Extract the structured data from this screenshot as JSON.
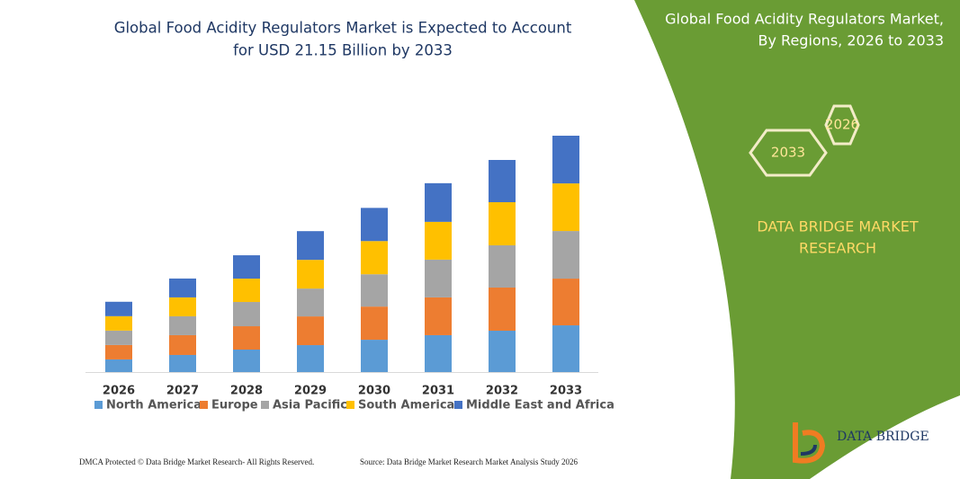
{
  "chart_data": {
    "type": "stacked-bar",
    "title": [
      "Global Food Acidity Regulators Market is Expected to Account",
      "for USD 21.15 Billion by 2033"
    ],
    "categories": [
      "2026",
      "2027",
      "2028",
      "2029",
      "2030",
      "2031",
      "2032",
      "2033"
    ],
    "series": [
      {
        "name": "North America",
        "color": "#5b9bd5",
        "values": [
          1.13,
          1.53,
          2.01,
          2.41,
          2.89,
          3.3,
          3.7,
          4.18
        ]
      },
      {
        "name": "Europe",
        "color": "#ed7d31",
        "values": [
          1.29,
          1.77,
          2.09,
          2.57,
          2.97,
          3.38,
          3.86,
          4.18
        ]
      },
      {
        "name": "Asia Pacific",
        "color": "#a5a5a5",
        "values": [
          1.29,
          1.69,
          2.17,
          2.49,
          2.89,
          3.38,
          3.78,
          4.26
        ]
      },
      {
        "name": "South America",
        "color": "#ffc000",
        "values": [
          1.29,
          1.69,
          2.09,
          2.57,
          2.97,
          3.38,
          3.86,
          4.26
        ]
      },
      {
        "name": "Middle East and Africa",
        "color": "#4472c4",
        "values": [
          1.29,
          1.69,
          2.09,
          2.57,
          2.97,
          3.46,
          3.78,
          4.27
        ]
      }
    ]
  },
  "panel": {
    "title": [
      "Global Food Acidity Regulators Market,",
      "By Regions, 2026 to 2033"
    ],
    "hexagons": [
      "2026",
      "2033"
    ],
    "brand": [
      "DATA BRIDGE MARKET",
      "RESEARCH"
    ],
    "logo": "DATA BRIDGE"
  },
  "footer": {
    "left": "DMCA Protected © Data Bridge Market Research-  All Rights Reserved.",
    "right": "Source: Data Bridge Market Research  Market Analysis Study 2026"
  }
}
